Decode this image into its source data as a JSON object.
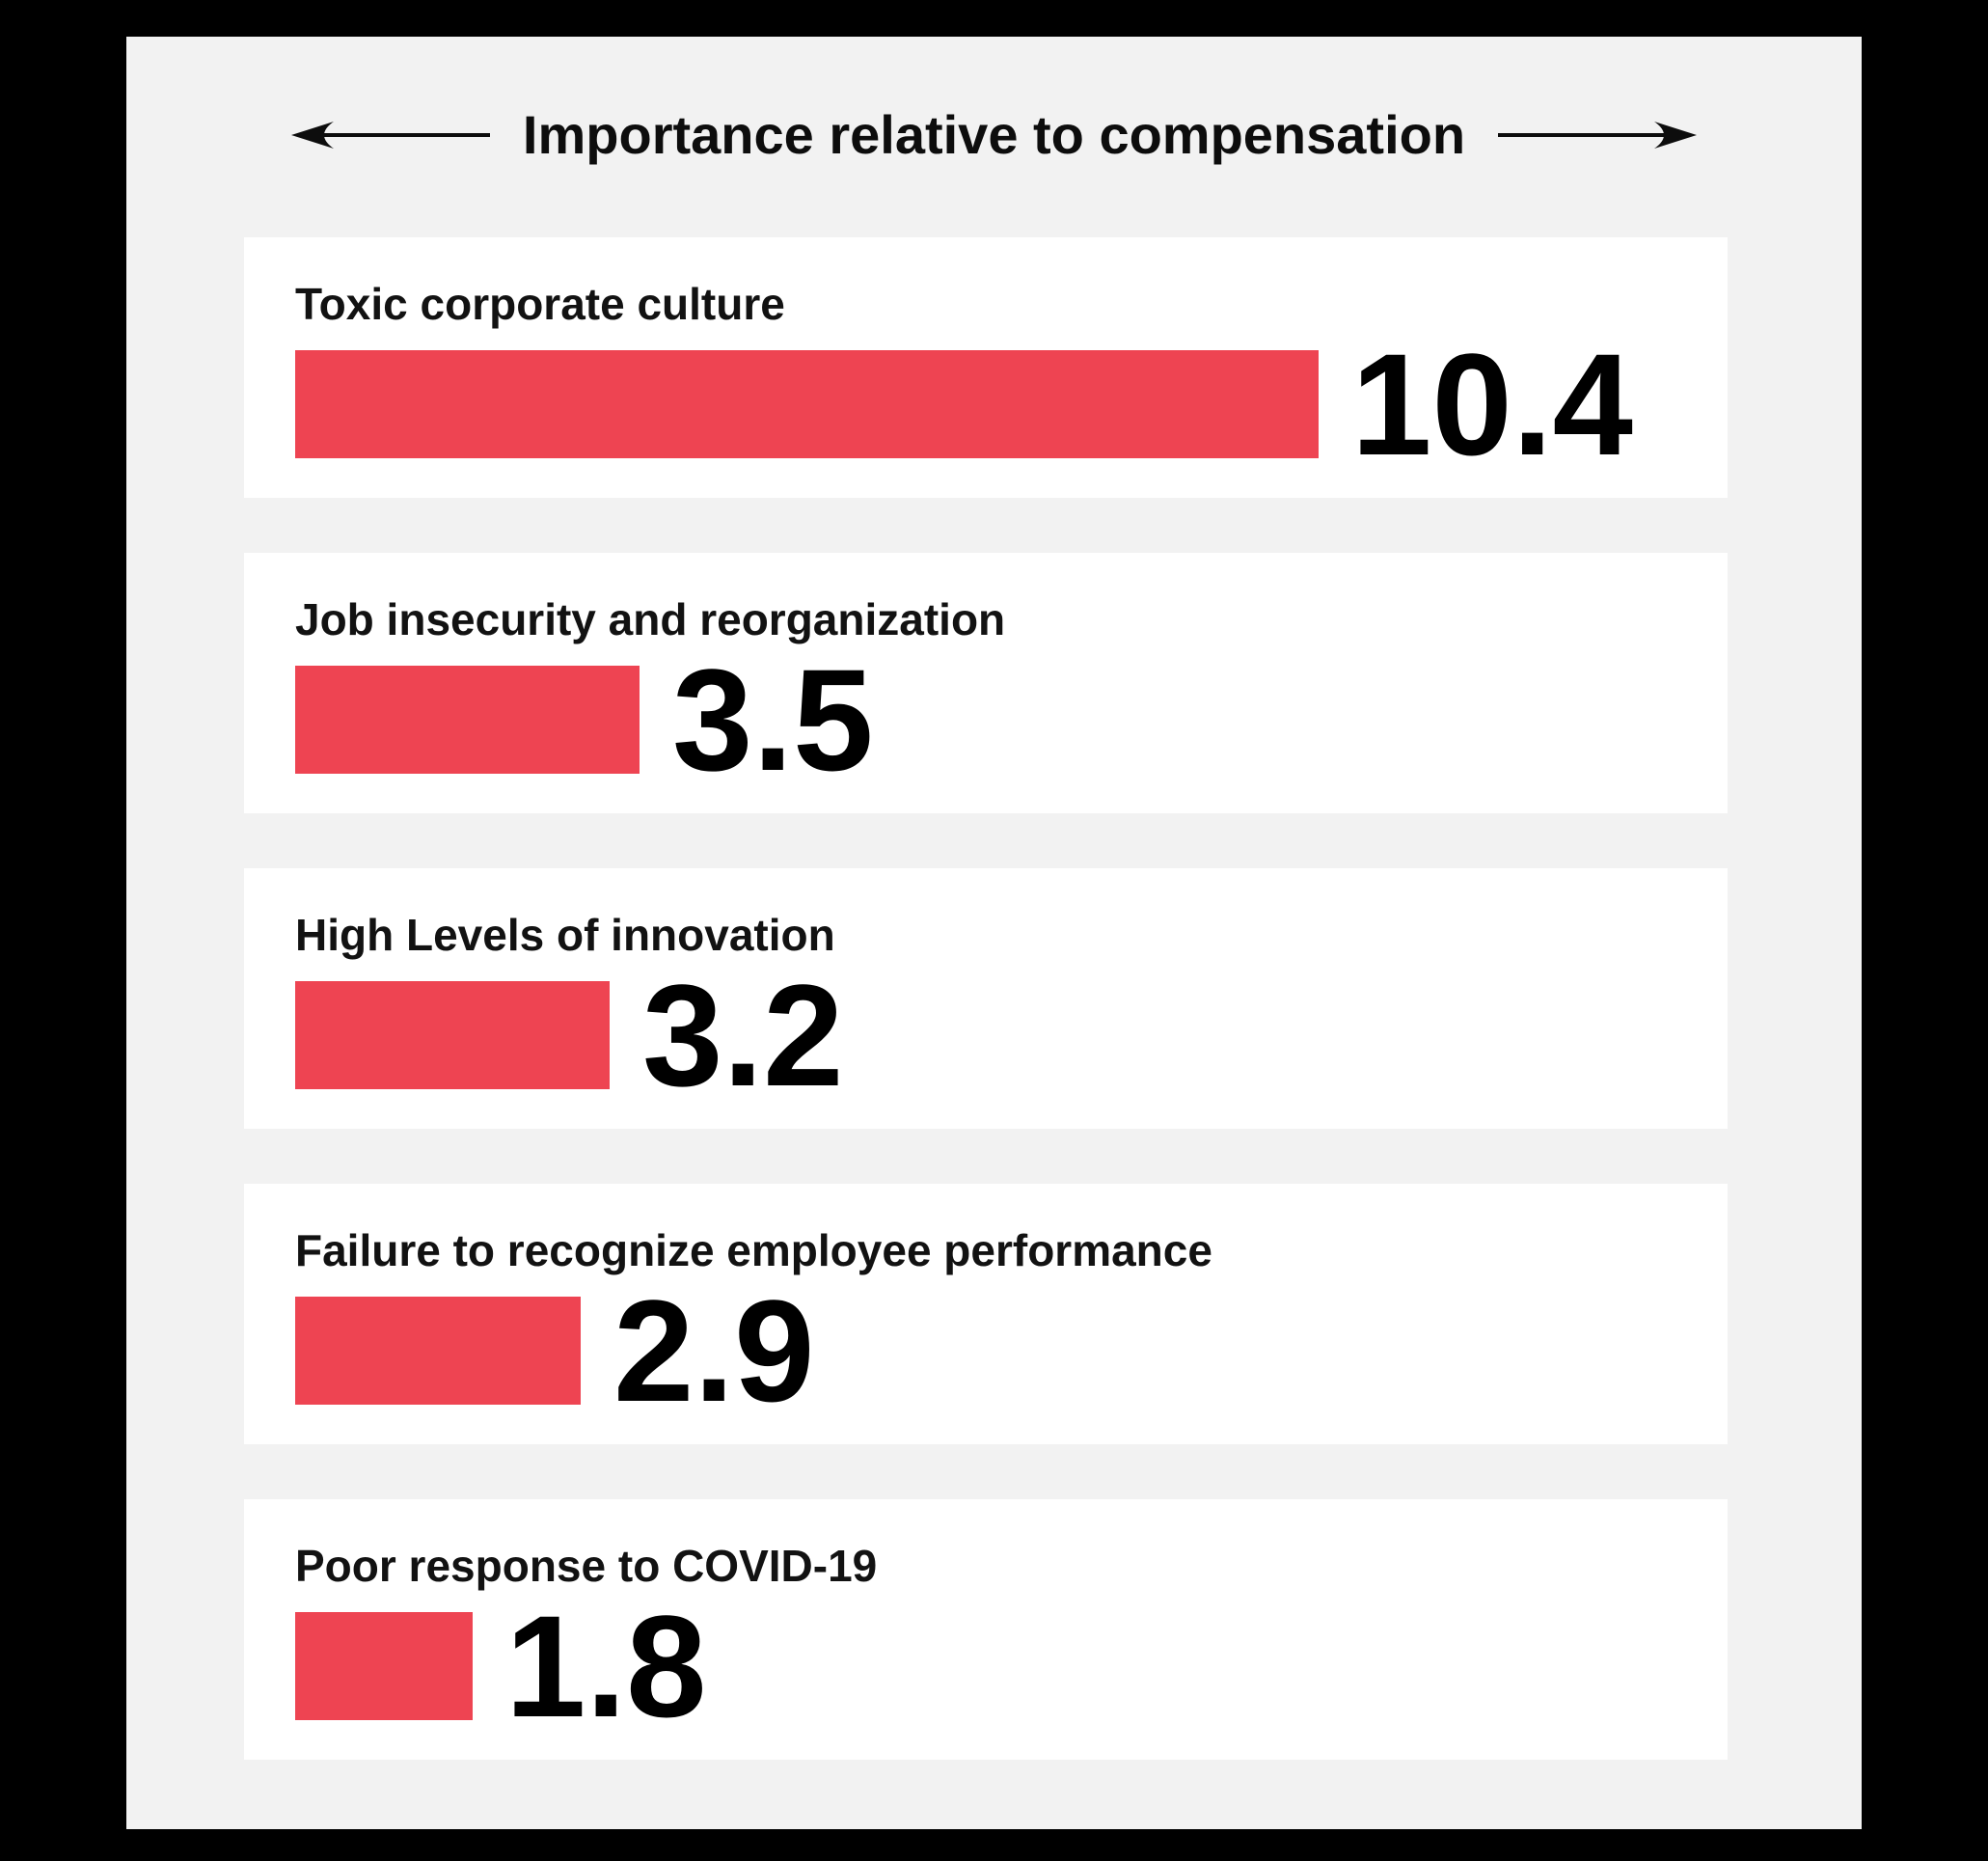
{
  "canvas": {
    "background": "#000000"
  },
  "panel": {
    "background": "#F2F2F2",
    "card_background": "#FFFFFF"
  },
  "header": {
    "title": "Importance relative to compensation"
  },
  "chart_data": {
    "type": "bar",
    "orientation": "horizontal",
    "title": "Importance relative to compensation",
    "categories": [
      "Toxic corporate culture",
      "Job insecurity and reorganization",
      "High Levels of innovation",
      "Failure to recognize employee performance",
      "Poor response to COVID-19"
    ],
    "values": [
      10.4,
      3.5,
      3.2,
      2.9,
      1.8
    ],
    "value_labels": [
      "10.4",
      "3.5",
      "3.2",
      "2.9",
      "1.8"
    ],
    "value_range": [
      0,
      10.4
    ],
    "bar_color": "#EE4452",
    "text_color": "#121212",
    "legend": "none",
    "grid": false
  }
}
